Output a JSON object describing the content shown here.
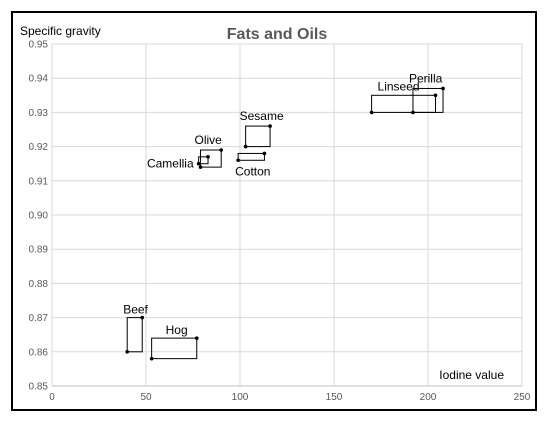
{
  "chart_data": {
    "type": "scatter",
    "title": "Fats and Oils",
    "xlabel": "Iodine value",
    "ylabel": "Specific gravity",
    "xlim": [
      0,
      250
    ],
    "ylim": [
      0.85,
      0.95
    ],
    "xticks": [
      0,
      50,
      100,
      150,
      200,
      250
    ],
    "yticks": [
      0.85,
      0.86,
      0.87,
      0.88,
      0.89,
      0.9,
      0.91,
      0.92,
      0.93,
      0.94,
      0.95
    ],
    "xtick_labels": [
      "0",
      "50",
      "100",
      "150",
      "200",
      "250"
    ],
    "ytick_labels": [
      "0.85",
      "0.86",
      "0.87",
      "0.88",
      "0.89",
      "0.90",
      "0.91",
      "0.92",
      "0.93",
      "0.94",
      "0.95"
    ],
    "grid": true,
    "items": [
      {
        "name": "Linseed",
        "x": [
          170,
          204
        ],
        "y": [
          0.93,
          0.935
        ]
      },
      {
        "name": "Perilla",
        "x": [
          192,
          208
        ],
        "y": [
          0.93,
          0.937
        ]
      },
      {
        "name": "Sesame",
        "x": [
          103,
          116
        ],
        "y": [
          0.92,
          0.926
        ]
      },
      {
        "name": "Olive",
        "x": [
          79,
          90
        ],
        "y": [
          0.914,
          0.919
        ]
      },
      {
        "name": "Camellia",
        "x": [
          78,
          83
        ],
        "y": [
          0.915,
          0.917
        ]
      },
      {
        "name": "Cotton",
        "x": [
          99,
          113
        ],
        "y": [
          0.916,
          0.918
        ]
      },
      {
        "name": "Beef",
        "x": [
          40,
          48
        ],
        "y": [
          0.86,
          0.87
        ]
      },
      {
        "name": "Hog",
        "x": [
          53,
          77
        ],
        "y": [
          0.858,
          0.864
        ]
      }
    ]
  }
}
